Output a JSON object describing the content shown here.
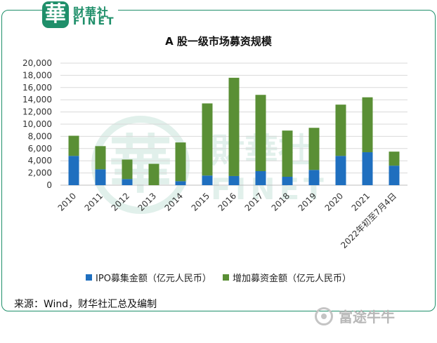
{
  "logo": {
    "seal_char": "華",
    "name_cn": "财華社",
    "name_en": "FINET"
  },
  "watermark": {
    "seal_char": "華",
    "name_cn": "財華社",
    "name_en": "FINET"
  },
  "chart_data": {
    "type": "bar",
    "stacked": true,
    "title": "A 股一级市场募资规模",
    "categories": [
      "2010",
      "2011",
      "2012",
      "2013",
      "2014",
      "2015",
      "2016",
      "2017",
      "2018",
      "2019",
      "2020",
      "2021",
      "2022年初至7月4日"
    ],
    "series": [
      {
        "name": "IPO募集金额（亿元人民币）",
        "color": "#1f6fbf",
        "values": [
          4800,
          2600,
          1000,
          0,
          650,
          1580,
          1500,
          2300,
          1380,
          2500,
          4800,
          5400,
          3200
        ]
      },
      {
        "name": "增加募资金额（亿元人民币）",
        "color": "#5a8f35",
        "values": [
          3300,
          3800,
          3200,
          3500,
          6350,
          11820,
          16100,
          12500,
          7570,
          6900,
          8400,
          9000,
          2300
        ]
      }
    ],
    "ylim": [
      0,
      20000
    ],
    "yticks": [
      "0",
      "2,000",
      "4,000",
      "6,000",
      "8,000",
      "10,000",
      "12,000",
      "14,000",
      "16,000",
      "18,000",
      "20,000"
    ],
    "grid": true,
    "legend_position": "bottom"
  },
  "source_text": "来源：Wind，财华社汇总及编制",
  "futu_brand": "富途牛牛"
}
